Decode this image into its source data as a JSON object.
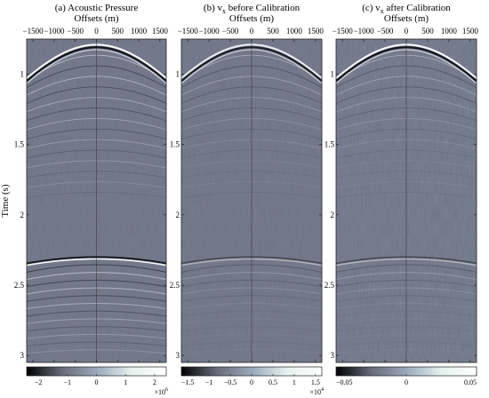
{
  "chart_data": [
    {
      "type": "heatmap",
      "title": "(a) Acoustic Pressure",
      "xlabel": "Offsets (m)",
      "ylabel": "Time (s)",
      "xlim": [
        -1650,
        1650
      ],
      "ylim": [
        0.75,
        3.05
      ],
      "x_ticks": [
        -1500,
        -1000,
        -500,
        0,
        500,
        1000,
        1500
      ],
      "y_ticks": [
        1,
        1.5,
        2,
        2.5,
        3
      ],
      "events": [
        {
          "type": "direct-wave",
          "apex_time": 0.79,
          "apex_offset": 0
        },
        {
          "type": "reflection",
          "apex_time": 2.3,
          "apex_offset": 0
        }
      ],
      "colorbar": {
        "ticks": [
          -2,
          -1,
          0,
          1,
          2
        ],
        "range": [
          -2.4,
          2.4
        ],
        "scale_label": "×10^6",
        "colormap": [
          "#000000",
          "#666a78",
          "#9aa8bb",
          "#e4f2ee",
          "#ffffff"
        ]
      }
    },
    {
      "type": "heatmap",
      "title_prefix": "(b) v",
      "title_sub": "x",
      "title_suffix": " before Calibration",
      "xlabel": "Offsets (m)",
      "xlim": [
        -1650,
        1650
      ],
      "ylim": [
        0.75,
        3.05
      ],
      "x_ticks": [
        -1500,
        -1000,
        -500,
        0,
        500,
        1000,
        1500
      ],
      "y_ticks": [
        1,
        1.5,
        2,
        2.5,
        3
      ],
      "events": [
        {
          "type": "direct-wave",
          "apex_time": 0.79,
          "apex_offset": 0
        },
        {
          "type": "reflection",
          "apex_time": 2.3,
          "apex_offset": 0
        }
      ],
      "colorbar": {
        "ticks": [
          -1.5,
          -1,
          -0.5,
          0,
          0.5,
          1,
          1.5
        ],
        "range": [
          -1.65,
          1.65
        ],
        "scale_label": "×10^4",
        "colormap": [
          "#000000",
          "#666a78",
          "#9aa8bb",
          "#e4f2ee",
          "#ffffff"
        ]
      }
    },
    {
      "type": "heatmap",
      "title_prefix": "(c) v",
      "title_sub": "x",
      "title_suffix": " after Calibration",
      "xlabel": "Offsets (m)",
      "xlim": [
        -1650,
        1650
      ],
      "ylim": [
        0.75,
        3.05
      ],
      "x_ticks": [
        -1500,
        -1000,
        -500,
        0,
        500,
        1000,
        1500
      ],
      "y_ticks": [
        1,
        1.5,
        2,
        2.5,
        3
      ],
      "events": [
        {
          "type": "direct-wave",
          "apex_time": 0.79,
          "apex_offset": 0
        },
        {
          "type": "reflection",
          "apex_time": 2.3,
          "apex_offset": 0
        }
      ],
      "colorbar": {
        "ticks": [
          -0.05,
          0,
          0.05
        ],
        "range": [
          -0.05,
          0.05
        ],
        "scale_label": "",
        "colormap": [
          "#000000",
          "#666a78",
          "#9aa8bb",
          "#e4f2ee",
          "#ffffff"
        ]
      }
    }
  ],
  "colors": {
    "background_gray": "#6f7586",
    "event_dark": "#14161c",
    "event_light": "#f4f6f8"
  }
}
